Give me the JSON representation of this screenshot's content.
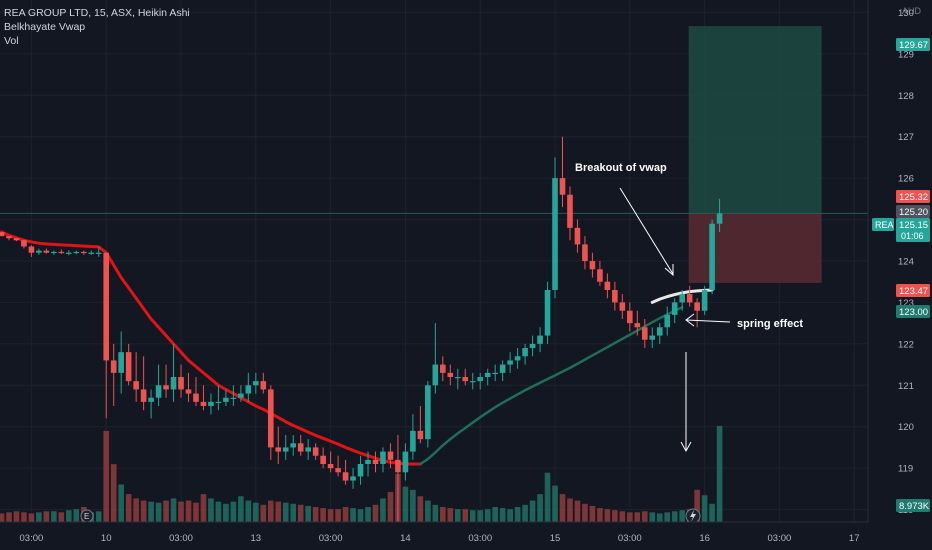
{
  "legend": {
    "title": "REA GROUP LTD, 15, ASX, Heikin Ashi",
    "indicator_1": "Belkhayate Vwap",
    "indicator_2": "Vol"
  },
  "annotations": {
    "breakout": "Breakout of vwap",
    "spring": "spring effect"
  },
  "colors": {
    "background": "#131722",
    "up": "#26a69a",
    "down": "#ef5350",
    "vwap_red": "#e01414",
    "vwap_green": "#1e6e58",
    "vwap_white": "#e8e8e8",
    "target_zone": "#1e4a42",
    "stop_zone": "#5a2a30"
  },
  "chart_data": {
    "type": "candlestick",
    "currency": "AUD",
    "symbol_label": "REA",
    "ylim": [
      117.7,
      130.3
    ],
    "y_ticks": [
      118.0,
      119.0,
      120.0,
      121.0,
      122.0,
      123.0,
      124.0,
      125.0,
      126.0,
      127.0,
      128.0,
      129.0,
      130.0
    ],
    "x_tick_labels": [
      {
        "bar": 4,
        "label": "03:00"
      },
      {
        "bar": 14,
        "label": "10"
      },
      {
        "bar": 24,
        "label": "03:00"
      },
      {
        "bar": 34,
        "label": "13"
      },
      {
        "bar": 44,
        "label": "03:00"
      },
      {
        "bar": 54,
        "label": "14"
      },
      {
        "bar": 64,
        "label": "03:00"
      },
      {
        "bar": 74,
        "label": "15"
      },
      {
        "bar": 84,
        "label": "03:00"
      },
      {
        "bar": 94,
        "label": "16"
      },
      {
        "bar": 104,
        "label": "03:00"
      },
      {
        "bar": 114,
        "label": "17"
      }
    ],
    "price_labels": [
      {
        "value": "129.67",
        "kind": "target"
      },
      {
        "value": "125.32",
        "kind": "down"
      },
      {
        "value": "125.20",
        "kind": "gray"
      },
      {
        "value": "125.15",
        "kind": "current",
        "sub": "01:06"
      },
      {
        "value": "123.47",
        "kind": "down"
      },
      {
        "value": "123.00",
        "kind": "up"
      },
      {
        "value": "8.973K",
        "kind": "volume"
      }
    ],
    "position": {
      "entry": 125.15,
      "target": 129.67,
      "stop": 123.47
    },
    "ohlc": [
      [
        124.7,
        124.7,
        124.6,
        124.6
      ],
      [
        124.6,
        124.6,
        124.5,
        124.55
      ],
      [
        124.55,
        124.56,
        124.48,
        124.5
      ],
      [
        124.5,
        124.52,
        124.3,
        124.35
      ],
      [
        124.35,
        124.38,
        124.1,
        124.2
      ],
      [
        124.2,
        124.3,
        124.15,
        124.25
      ],
      [
        124.25,
        124.3,
        124.18,
        124.2
      ],
      [
        124.2,
        124.25,
        124.15,
        124.22
      ],
      [
        124.22,
        124.28,
        124.17,
        124.2
      ],
      [
        124.2,
        124.26,
        124.14,
        124.2
      ],
      [
        124.2,
        124.25,
        124.16,
        124.22
      ],
      [
        124.22,
        124.25,
        124.15,
        124.2
      ],
      [
        124.2,
        124.25,
        124.15,
        124.2
      ],
      [
        124.2,
        124.35,
        124.1,
        124.2
      ],
      [
        124.2,
        124.2,
        120.2,
        121.6
      ],
      [
        121.6,
        122.0,
        120.5,
        121.3
      ],
      [
        121.3,
        122.3,
        120.8,
        121.8
      ],
      [
        121.8,
        122.0,
        121.0,
        121.1
      ],
      [
        121.1,
        121.8,
        120.6,
        120.9
      ],
      [
        120.9,
        121.7,
        120.4,
        120.6
      ],
      [
        120.6,
        120.9,
        120.2,
        120.7
      ],
      [
        120.7,
        121.5,
        120.5,
        121.0
      ],
      [
        121.0,
        121.5,
        120.7,
        120.9
      ],
      [
        120.9,
        122.0,
        120.6,
        121.2
      ],
      [
        121.2,
        121.5,
        120.7,
        120.9
      ],
      [
        120.9,
        121.3,
        120.6,
        120.8
      ],
      [
        120.8,
        121.2,
        120.5,
        120.6
      ],
      [
        120.6,
        121.0,
        120.4,
        120.5
      ],
      [
        120.5,
        120.8,
        120.3,
        120.6
      ],
      [
        120.6,
        121.0,
        120.4,
        120.6
      ],
      [
        120.6,
        120.9,
        120.5,
        120.7
      ],
      [
        120.7,
        121.0,
        120.5,
        120.7
      ],
      [
        120.7,
        121.0,
        120.6,
        120.8
      ],
      [
        120.8,
        121.3,
        120.6,
        121.0
      ],
      [
        121.0,
        121.3,
        120.8,
        121.1
      ],
      [
        121.1,
        121.3,
        120.8,
        120.9
      ],
      [
        120.9,
        121.0,
        119.2,
        119.5
      ],
      [
        119.5,
        120.0,
        119.1,
        119.4
      ],
      [
        119.4,
        119.8,
        119.2,
        119.5
      ],
      [
        119.5,
        119.8,
        119.3,
        119.6
      ],
      [
        119.6,
        119.8,
        119.3,
        119.4
      ],
      [
        119.4,
        119.7,
        119.2,
        119.5
      ],
      [
        119.5,
        119.6,
        119.2,
        119.3
      ],
      [
        119.3,
        119.5,
        119.0,
        119.1
      ],
      [
        119.1,
        119.4,
        118.9,
        119.0
      ],
      [
        119.0,
        119.3,
        118.8,
        118.9
      ],
      [
        118.9,
        119.2,
        118.6,
        118.7
      ],
      [
        118.7,
        119.0,
        118.5,
        118.8
      ],
      [
        118.8,
        119.3,
        118.6,
        119.1
      ],
      [
        119.1,
        119.4,
        118.8,
        119.2
      ],
      [
        119.2,
        119.4,
        118.9,
        119.1
      ],
      [
        119.1,
        119.5,
        118.9,
        119.4
      ],
      [
        119.4,
        119.6,
        119.0,
        119.2
      ],
      [
        119.2,
        119.8,
        117.5,
        118.9
      ],
      [
        118.9,
        119.6,
        118.7,
        119.4
      ],
      [
        119.4,
        120.3,
        119.2,
        119.9
      ],
      [
        119.9,
        120.5,
        119.6,
        119.7
      ],
      [
        119.7,
        121.1,
        119.5,
        121.0
      ],
      [
        121.0,
        122.5,
        120.8,
        121.5
      ],
      [
        121.5,
        121.7,
        121.1,
        121.3
      ],
      [
        121.3,
        121.5,
        121.0,
        121.2
      ],
      [
        121.2,
        121.4,
        120.9,
        121.2
      ],
      [
        121.2,
        121.4,
        121.0,
        121.1
      ],
      [
        121.1,
        121.3,
        120.9,
        121.1
      ],
      [
        121.1,
        121.3,
        120.9,
        121.2
      ],
      [
        121.2,
        121.4,
        121.0,
        121.3
      ],
      [
        121.3,
        121.5,
        121.1,
        121.3
      ],
      [
        121.3,
        121.6,
        121.1,
        121.5
      ],
      [
        121.5,
        121.8,
        121.3,
        121.6
      ],
      [
        121.6,
        121.9,
        121.4,
        121.7
      ],
      [
        121.7,
        122.0,
        121.5,
        121.9
      ],
      [
        121.9,
        122.2,
        121.7,
        122.0
      ],
      [
        122.0,
        122.4,
        121.8,
        122.2
      ],
      [
        122.2,
        123.5,
        122.0,
        123.3
      ],
      [
        123.3,
        126.5,
        123.1,
        126.0
      ],
      [
        126.0,
        127.0,
        125.3,
        125.6
      ],
      [
        125.6,
        125.8,
        124.5,
        124.8
      ],
      [
        124.8,
        125.0,
        124.2,
        124.4
      ],
      [
        124.4,
        124.6,
        123.8,
        124.0
      ],
      [
        124.0,
        124.2,
        123.6,
        123.8
      ],
      [
        123.8,
        124.0,
        123.4,
        123.5
      ],
      [
        123.5,
        123.7,
        123.1,
        123.3
      ],
      [
        123.3,
        123.5,
        122.8,
        123.0
      ],
      [
        123.0,
        123.2,
        122.6,
        122.8
      ],
      [
        122.8,
        123.0,
        122.3,
        122.5
      ],
      [
        122.5,
        122.8,
        122.2,
        122.4
      ],
      [
        122.4,
        122.6,
        121.9,
        122.1
      ],
      [
        122.1,
        122.4,
        121.9,
        122.2
      ],
      [
        122.2,
        122.5,
        122.0,
        122.4
      ],
      [
        122.4,
        122.9,
        122.2,
        122.7
      ],
      [
        122.7,
        123.1,
        122.5,
        123.0
      ],
      [
        123.0,
        123.3,
        122.8,
        123.2
      ],
      [
        123.2,
        123.4,
        122.9,
        123.0
      ],
      [
        123.0,
        123.1,
        122.4,
        122.8
      ],
      [
        122.8,
        123.4,
        122.7,
        123.3
      ],
      [
        123.3,
        125.0,
        123.2,
        124.9
      ],
      [
        124.9,
        125.5,
        124.7,
        125.15
      ]
    ],
    "volume": [
      0.8,
      0.9,
      1.0,
      0.9,
      0.8,
      0.9,
      1.0,
      1.0,
      0.9,
      1.1,
      1.2,
      1.4,
      0.9,
      1.0,
      8.5,
      5.4,
      3.5,
      2.6,
      2.2,
      2.0,
      1.9,
      1.8,
      2.0,
      2.2,
      1.9,
      2.0,
      1.8,
      2.6,
      2.2,
      1.9,
      1.7,
      1.9,
      2.4,
      2.0,
      1.8,
      1.6,
      2.0,
      1.9,
      1.8,
      1.7,
      1.6,
      1.5,
      1.4,
      1.3,
      1.2,
      1.2,
      1.4,
      1.3,
      1.2,
      1.4,
      1.6,
      2.2,
      2.8,
      4.5,
      3.3,
      3.0,
      2.4,
      2.0,
      1.6,
      1.4,
      1.3,
      1.2,
      1.2,
      1.1,
      1.1,
      1.2,
      1.4,
      1.3,
      1.2,
      1.4,
      1.6,
      2.0,
      2.6,
      4.6,
      3.4,
      2.6,
      2.2,
      2.0,
      1.7,
      1.5,
      1.3,
      1.2,
      1.1,
      1.0,
      0.9,
      0.9,
      1.0,
      0.9,
      0.8,
      0.9,
      1.0,
      1.1,
      1.2,
      3.0,
      2.5,
      1.7,
      8.973
    ],
    "vwap": [
      {
        "from": 0,
        "to": 56,
        "color": "red",
        "values": [
          124.7,
          124.62,
          124.56,
          124.5,
          124.46,
          124.43,
          124.41,
          124.4,
          124.39,
          124.38,
          124.37,
          124.36,
          124.35,
          124.34,
          124.2,
          123.9,
          123.6,
          123.35,
          123.1,
          122.85,
          122.6,
          122.4,
          122.2,
          122.0,
          121.8,
          121.6,
          121.45,
          121.3,
          121.15,
          121.0,
          120.9,
          120.8,
          120.7,
          120.6,
          120.5,
          120.42,
          120.32,
          120.22,
          120.12,
          120.03,
          119.95,
          119.87,
          119.79,
          119.72,
          119.65,
          119.58,
          119.5,
          119.43,
          119.36,
          119.3,
          119.24,
          119.18,
          119.14,
          119.12,
          119.1,
          119.1,
          119.1
        ]
      },
      {
        "from": 56,
        "to": 91,
        "color": "green",
        "values": [
          119.1,
          119.22,
          119.38,
          119.55,
          119.7,
          119.84,
          119.97,
          120.1,
          120.23,
          120.35,
          120.47,
          120.58,
          120.68,
          120.78,
          120.88,
          120.97,
          121.06,
          121.15,
          121.24,
          121.33,
          121.42,
          121.52,
          121.62,
          121.72,
          121.82,
          121.92,
          122.02,
          122.12,
          122.22,
          122.32,
          122.42,
          122.52,
          122.62,
          122.71,
          122.8,
          122.88
        ]
      },
      {
        "from": 87,
        "to": 95,
        "color": "white",
        "values": [
          123.0,
          123.08,
          123.14,
          123.19,
          123.23,
          123.26,
          123.28,
          123.29,
          123.3
        ]
      }
    ]
  }
}
